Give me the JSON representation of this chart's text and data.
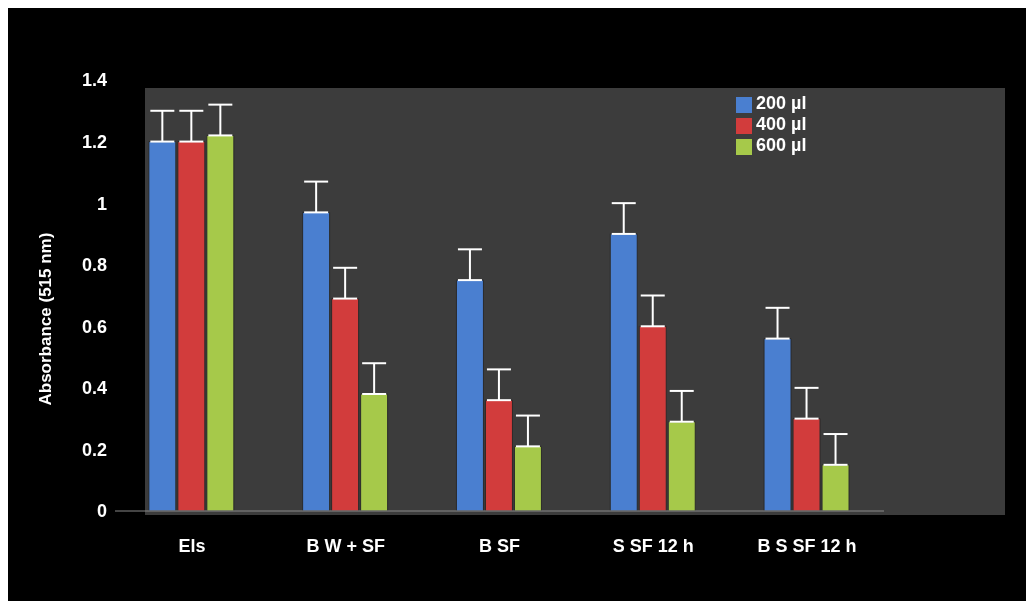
{
  "chart_data": {
    "type": "bar",
    "ylabel": "Absorbance (515 nm)",
    "categories": [
      "Els",
      "B W +  SF",
      "B SF",
      "S SF  12 h",
      "B S SF 12 h"
    ],
    "series": [
      {
        "name": "200 µl",
        "color": "#4a7fd0",
        "values": [
          1.2,
          0.97,
          0.75,
          0.9,
          0.56
        ],
        "errors": [
          [
            1.2,
            1.3
          ],
          [
            0.97,
            1.07
          ],
          [
            0.75,
            0.85
          ],
          [
            0.9,
            1.0
          ],
          [
            0.56,
            0.66
          ]
        ]
      },
      {
        "name": "400 µl",
        "color": "#d23c3c",
        "values": [
          1.2,
          0.69,
          0.36,
          0.6,
          0.3
        ],
        "errors": [
          [
            1.2,
            1.3
          ],
          [
            0.69,
            0.79
          ],
          [
            0.36,
            0.46
          ],
          [
            0.6,
            0.7
          ],
          [
            0.3,
            0.4
          ]
        ]
      },
      {
        "name": "600 µl",
        "color": "#a6c94a",
        "values": [
          1.22,
          0.38,
          0.21,
          0.29,
          0.15
        ],
        "errors": [
          [
            1.22,
            1.32
          ],
          [
            0.38,
            0.48
          ],
          [
            0.21,
            0.31
          ],
          [
            0.29,
            0.39
          ],
          [
            0.15,
            0.25
          ]
        ]
      }
    ],
    "ylim": [
      0,
      1.4
    ],
    "yticks": [
      0,
      0.2,
      0.4,
      0.6,
      0.8,
      1,
      1.2,
      1.4
    ],
    "grid": false,
    "legend": "top right"
  }
}
